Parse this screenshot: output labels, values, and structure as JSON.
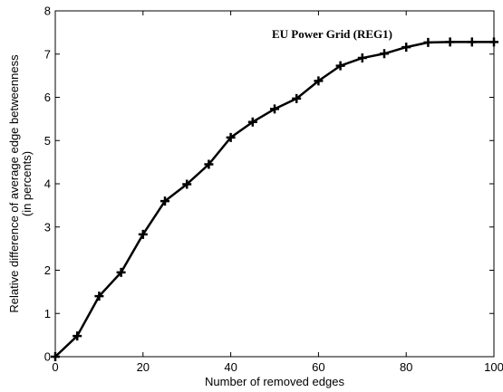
{
  "chart_data": {
    "type": "line",
    "title": "",
    "xlabel": "Number of removed edges",
    "ylabel_lines": [
      "Relative difference of average edge betweenness",
      "(in percents)"
    ],
    "xlim": [
      0,
      100
    ],
    "ylim": [
      0,
      8
    ],
    "xticks": [
      0,
      20,
      40,
      60,
      80,
      100
    ],
    "yticks": [
      0,
      1,
      2,
      3,
      4,
      5,
      6,
      7,
      8
    ],
    "grid": false,
    "annotation": "EU Power Grid (REG1)",
    "series": [
      {
        "name": "EU Power Grid (REG1)",
        "marker": "plus",
        "color": "#000000",
        "x": [
          0,
          5,
          10,
          15,
          20,
          25,
          30,
          35,
          40,
          45,
          50,
          55,
          60,
          65,
          70,
          75,
          80,
          85,
          90,
          95,
          100
        ],
        "y": [
          0.0,
          0.48,
          1.4,
          1.95,
          2.83,
          3.6,
          3.99,
          4.45,
          5.07,
          5.43,
          5.73,
          5.97,
          6.38,
          6.73,
          6.91,
          7.01,
          7.16,
          7.27,
          7.28,
          7.28,
          7.28
        ]
      }
    ]
  }
}
